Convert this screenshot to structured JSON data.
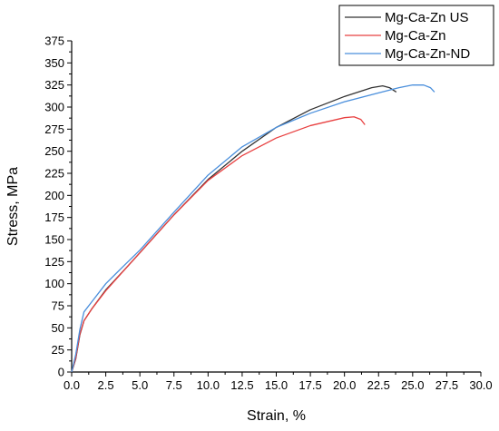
{
  "chart_data": {
    "type": "line",
    "xlabel": "Strain, %",
    "ylabel": "Stress, MPa",
    "xlim": [
      0,
      30
    ],
    "ylim": [
      0,
      375
    ],
    "xticks": [
      "0.0",
      "2.5",
      "5.0",
      "7.5",
      "10.0",
      "12.5",
      "15.0",
      "17.5",
      "20.0",
      "22.5",
      "25.0",
      "27.5",
      "30.0"
    ],
    "yticks": [
      "0",
      "25",
      "50",
      "75",
      "100",
      "125",
      "150",
      "175",
      "200",
      "225",
      "250",
      "275",
      "300",
      "325",
      "350",
      "375"
    ],
    "grid": false,
    "legend_position": "top-right",
    "series": [
      {
        "name": "Mg-Ca-Zn US",
        "color": "#333333",
        "points": [
          [
            0,
            0
          ],
          [
            0.3,
            15
          ],
          [
            0.6,
            42
          ],
          [
            0.9,
            58
          ],
          [
            1.5,
            72
          ],
          [
            2.5,
            93
          ],
          [
            4,
            118
          ],
          [
            5,
            135
          ],
          [
            7.5,
            178
          ],
          [
            10,
            218
          ],
          [
            12.5,
            250
          ],
          [
            15,
            277
          ],
          [
            17.5,
            297
          ],
          [
            20,
            312
          ],
          [
            22,
            322
          ],
          [
            22.8,
            324
          ],
          [
            23.3,
            322
          ],
          [
            23.8,
            317
          ]
        ]
      },
      {
        "name": "Mg-Ca-Zn",
        "color": "#e84040",
        "points": [
          [
            0,
            0
          ],
          [
            0.3,
            16
          ],
          [
            0.6,
            43
          ],
          [
            0.9,
            58
          ],
          [
            1.5,
            72
          ],
          [
            2.5,
            92
          ],
          [
            4,
            118
          ],
          [
            5,
            135
          ],
          [
            7.5,
            178
          ],
          [
            10,
            217
          ],
          [
            12.5,
            245
          ],
          [
            15,
            265
          ],
          [
            17.5,
            279
          ],
          [
            20,
            288
          ],
          [
            20.7,
            289
          ],
          [
            21.2,
            286
          ],
          [
            21.5,
            280
          ]
        ]
      },
      {
        "name": "Mg-Ca-Zn-ND",
        "color": "#4a8fdc",
        "points": [
          [
            0,
            0
          ],
          [
            0.3,
            20
          ],
          [
            0.6,
            48
          ],
          [
            0.9,
            68
          ],
          [
            1.5,
            80
          ],
          [
            2.5,
            100
          ],
          [
            4,
            123
          ],
          [
            5,
            138
          ],
          [
            7.5,
            181
          ],
          [
            10,
            223
          ],
          [
            12.5,
            255
          ],
          [
            15,
            277
          ],
          [
            17.5,
            293
          ],
          [
            20,
            306
          ],
          [
            22.5,
            316
          ],
          [
            24,
            322
          ],
          [
            25,
            325
          ],
          [
            25.8,
            325
          ],
          [
            26.3,
            322
          ],
          [
            26.6,
            317
          ]
        ]
      }
    ]
  }
}
